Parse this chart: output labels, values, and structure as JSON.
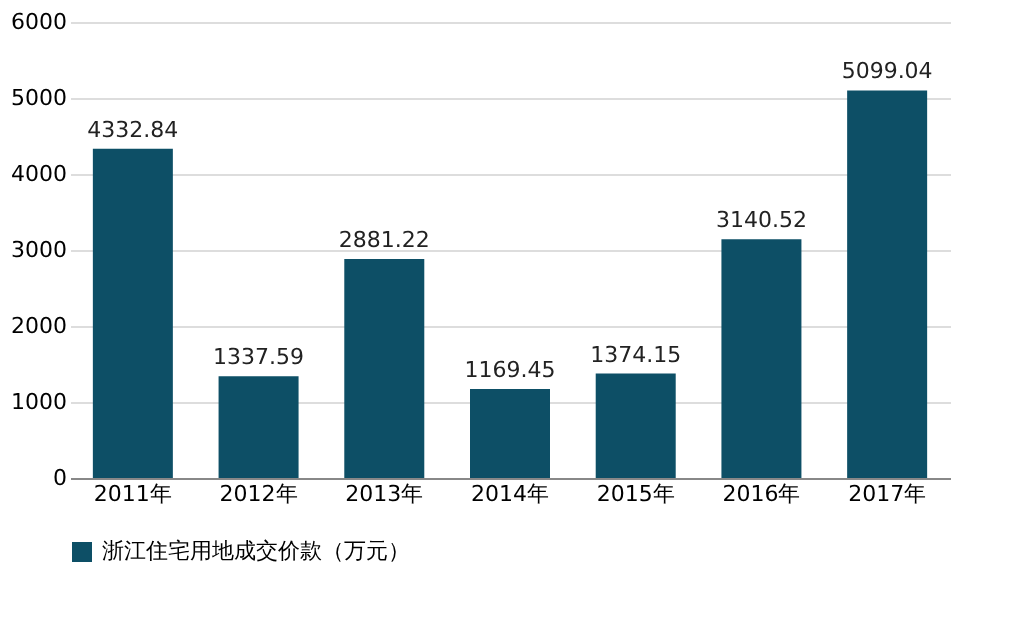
{
  "chart_data": {
    "type": "bar",
    "categories": [
      "2011年",
      "2012年",
      "2013年",
      "2014年",
      "2015年",
      "2016年",
      "2017年"
    ],
    "series": [
      {
        "name": "浙江住宅用地成交价款（万元）",
        "color": "#0d4f66",
        "values": [
          4332.84,
          1337.59,
          2881.22,
          1169.45,
          1374.15,
          3140.52,
          5099.04
        ]
      }
    ],
    "ylim": [
      0,
      6000
    ],
    "yticks": [
      0,
      1000,
      2000,
      3000,
      4000,
      5000,
      6000
    ],
    "grid": "y",
    "legend": "bottom",
    "data_labels": true
  }
}
